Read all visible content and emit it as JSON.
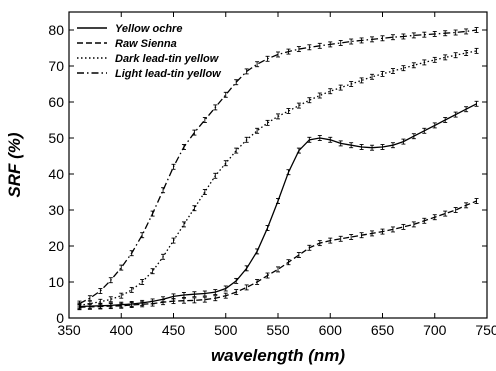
{
  "chart_data": {
    "type": "line",
    "title": "",
    "xlabel": "wavelength (nm)",
    "ylabel": "SRF (%)",
    "xlim": [
      350,
      750
    ],
    "ylim": [
      0,
      85
    ],
    "x_ticks": [
      350,
      400,
      450,
      500,
      550,
      600,
      650,
      700,
      750
    ],
    "y_ticks": [
      0,
      10,
      20,
      30,
      40,
      50,
      60,
      70,
      80
    ],
    "grid": false,
    "legend_position": "top-left",
    "x": [
      360,
      370,
      380,
      390,
      400,
      410,
      420,
      430,
      440,
      450,
      460,
      470,
      480,
      490,
      500,
      510,
      520,
      530,
      540,
      550,
      560,
      570,
      580,
      590,
      600,
      610,
      620,
      630,
      640,
      650,
      660,
      670,
      680,
      690,
      700,
      710,
      720,
      730,
      740
    ],
    "series": [
      {
        "name": "Yellow ochre",
        "line_style": "solid",
        "values": [
          3.2,
          3.3,
          3.4,
          3.5,
          3.7,
          3.9,
          4.2,
          4.6,
          5.2,
          6.0,
          6.4,
          6.6,
          6.8,
          7.2,
          8.2,
          10.3,
          13.8,
          18.5,
          25.0,
          32.5,
          40.5,
          46.5,
          49.5,
          50.0,
          49.5,
          48.5,
          48.0,
          47.5,
          47.3,
          47.5,
          48.0,
          49.0,
          50.5,
          52.0,
          53.5,
          55.0,
          56.5,
          58.0,
          59.5
        ]
      },
      {
        "name": "Raw Sienna",
        "line_style": "dashed",
        "values": [
          3.0,
          3.1,
          3.2,
          3.3,
          3.4,
          3.6,
          3.8,
          4.0,
          4.4,
          4.7,
          4.8,
          4.9,
          5.1,
          5.5,
          6.2,
          7.2,
          8.5,
          10.0,
          11.8,
          13.5,
          15.5,
          17.5,
          19.5,
          20.8,
          21.5,
          22.0,
          22.5,
          23.0,
          23.5,
          24.0,
          24.6,
          25.3,
          26.0,
          27.0,
          28.0,
          29.0,
          30.0,
          31.3,
          32.5
        ]
      },
      {
        "name": "Dark lead-tin yellow",
        "line_style": "dotted",
        "values": [
          3.5,
          4.0,
          4.5,
          5.2,
          6.2,
          7.8,
          10.0,
          13.0,
          17.0,
          21.5,
          26.0,
          30.5,
          35.0,
          39.5,
          43.0,
          46.5,
          49.5,
          52.0,
          54.2,
          56.0,
          57.5,
          59.0,
          60.5,
          61.8,
          63.0,
          64.0,
          65.0,
          66.0,
          67.0,
          67.8,
          68.6,
          69.4,
          70.2,
          71.0,
          71.7,
          72.4,
          73.0,
          73.6,
          74.2
        ]
      },
      {
        "name": "Light lead-tin yellow",
        "line_style": "dashdot",
        "values": [
          4.0,
          5.5,
          7.5,
          10.5,
          14.0,
          18.0,
          23.0,
          29.0,
          35.5,
          42.0,
          47.5,
          51.5,
          55.0,
          58.5,
          62.0,
          65.5,
          68.5,
          70.5,
          72.0,
          73.2,
          74.0,
          74.7,
          75.2,
          75.6,
          76.0,
          76.4,
          76.8,
          77.1,
          77.4,
          77.7,
          78.0,
          78.2,
          78.5,
          78.7,
          78.9,
          79.1,
          79.3,
          79.6,
          80.0
        ]
      }
    ]
  }
}
